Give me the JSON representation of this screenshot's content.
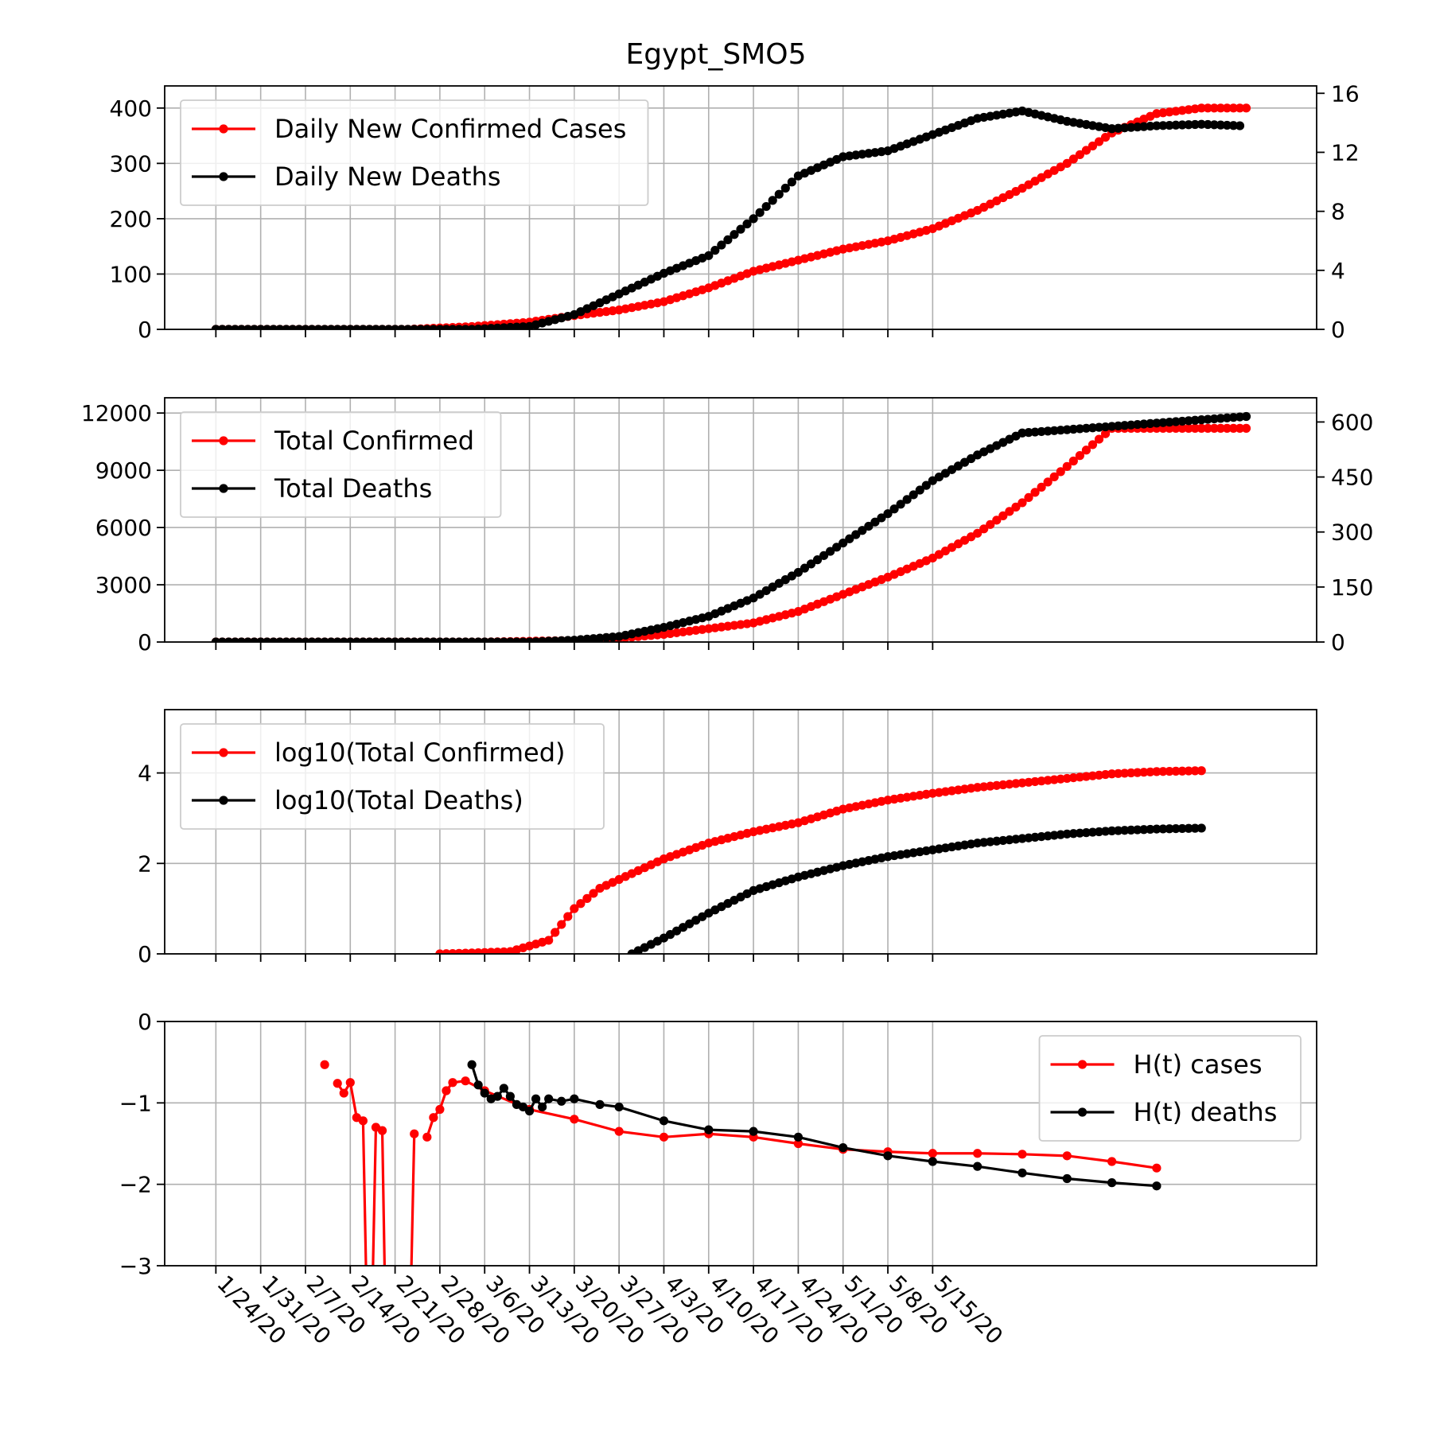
{
  "title": "Egypt_SMO5",
  "x_labels": [
    "1/24/20",
    "1/31/20",
    "2/7/20",
    "2/14/20",
    "2/21/20",
    "2/28/20",
    "3/6/20",
    "3/13/20",
    "3/20/20",
    "3/27/20",
    "4/3/20",
    "4/10/20",
    "4/17/20",
    "4/24/20",
    "5/1/20",
    "5/8/20",
    "5/15/20"
  ],
  "colors": {
    "confirmed": "#ff0000",
    "deaths": "#000000"
  },
  "chart_data": [
    {
      "type": "line",
      "title": "Egypt_SMO5",
      "x_unit": "days since 1/24/20",
      "ylim_left": [
        0,
        440
      ],
      "yticks_left": [
        0,
        100,
        200,
        300,
        400
      ],
      "ylim_right": [
        0,
        16.5
      ],
      "yticks_right": [
        0,
        4,
        8,
        12,
        16
      ],
      "legend": "top-left",
      "series": [
        {
          "name": "Daily New Confirmed Cases",
          "axis": "left",
          "color": "#ff0000",
          "points": [
            [
              0,
              0
            ],
            [
              30,
              0
            ],
            [
              40,
              5
            ],
            [
              49,
              13
            ],
            [
              56,
              25
            ],
            [
              63,
              35
            ],
            [
              70,
              50
            ],
            [
              77,
              75
            ],
            [
              84,
              105
            ],
            [
              91,
              125
            ],
            [
              98,
              145
            ],
            [
              105,
              160
            ],
            [
              112,
              182
            ],
            [
              119,
              215
            ],
            [
              126,
              255
            ],
            [
              133,
              300
            ],
            [
              140,
              355
            ],
            [
              147,
              390
            ],
            [
              154,
              400
            ],
            [
              161,
              400
            ]
          ]
        },
        {
          "name": "Daily New Deaths",
          "axis": "right",
          "color": "#000000",
          "points": [
            [
              0,
              0
            ],
            [
              40,
              0
            ],
            [
              49,
              0.2
            ],
            [
              56,
              1
            ],
            [
              63,
              2.4
            ],
            [
              70,
              3.8
            ],
            [
              77,
              5
            ],
            [
              84,
              7.5
            ],
            [
              91,
              10.4
            ],
            [
              98,
              11.7
            ],
            [
              105,
              12.1
            ],
            [
              112,
              13.2
            ],
            [
              119,
              14.3
            ],
            [
              126,
              14.8
            ],
            [
              133,
              14.1
            ],
            [
              140,
              13.6
            ],
            [
              147,
              13.8
            ],
            [
              154,
              13.9
            ],
            [
              160,
              13.8
            ]
          ]
        }
      ]
    },
    {
      "type": "line",
      "ylim_left": [
        0,
        12800
      ],
      "yticks_left": [
        0,
        3000,
        6000,
        9000,
        12000
      ],
      "ylim_right": [
        0,
        666
      ],
      "yticks_right": [
        0,
        150,
        300,
        450,
        600
      ],
      "legend": "top-left",
      "series": [
        {
          "name": "Total Confirmed",
          "axis": "left",
          "color": "#ff0000",
          "points": [
            [
              0,
              0
            ],
            [
              42,
              0
            ],
            [
              56,
              80
            ],
            [
              63,
              200
            ],
            [
              70,
              400
            ],
            [
              77,
              700
            ],
            [
              84,
              1000
            ],
            [
              91,
              1600
            ],
            [
              98,
              2500
            ],
            [
              105,
              3400
            ],
            [
              112,
              4400
            ],
            [
              119,
              5700
            ],
            [
              126,
              7300
            ],
            [
              133,
              9200
            ],
            [
              140,
              11200
            ],
            [
              161,
              11200
            ]
          ]
        },
        {
          "name": "Total Deaths",
          "axis": "right",
          "color": "#000000",
          "points": [
            [
              0,
              0
            ],
            [
              49,
              0
            ],
            [
              56,
              5
            ],
            [
              63,
              15
            ],
            [
              70,
              40
            ],
            [
              77,
              70
            ],
            [
              84,
              120
            ],
            [
              91,
              190
            ],
            [
              98,
              270
            ],
            [
              105,
              350
            ],
            [
              112,
              440
            ],
            [
              119,
              510
            ],
            [
              126,
              570
            ],
            [
              161,
              615
            ]
          ]
        }
      ]
    },
    {
      "type": "line",
      "ylim_left": [
        0,
        5.4
      ],
      "yticks_left": [
        0,
        2,
        4
      ],
      "legend": "top-left",
      "series": [
        {
          "name": "log10(Total Confirmed)",
          "axis": "left",
          "color": "#ff0000",
          "points": [
            [
              35,
              0
            ],
            [
              40,
              0.02
            ],
            [
              46,
              0.05
            ],
            [
              52,
              0.3
            ],
            [
              56,
              1.0
            ],
            [
              60,
              1.45
            ],
            [
              70,
              2.1
            ],
            [
              77,
              2.45
            ],
            [
              84,
              2.7
            ],
            [
              91,
              2.9
            ],
            [
              98,
              3.2
            ],
            [
              105,
              3.4
            ],
            [
              112,
              3.55
            ],
            [
              119,
              3.68
            ],
            [
              126,
              3.78
            ],
            [
              133,
              3.88
            ],
            [
              140,
              3.98
            ],
            [
              147,
              4.03
            ],
            [
              154,
              4.05
            ]
          ]
        },
        {
          "name": "log10(Total Deaths)",
          "axis": "left",
          "color": "#000000",
          "points": [
            [
              65,
              0
            ],
            [
              70,
              0.35
            ],
            [
              77,
              0.9
            ],
            [
              84,
              1.4
            ],
            [
              91,
              1.7
            ],
            [
              98,
              1.95
            ],
            [
              105,
              2.15
            ],
            [
              112,
              2.3
            ],
            [
              119,
              2.45
            ],
            [
              126,
              2.55
            ],
            [
              133,
              2.65
            ],
            [
              140,
              2.72
            ],
            [
              147,
              2.76
            ],
            [
              154,
              2.78
            ]
          ]
        }
      ]
    },
    {
      "type": "line",
      "ylim_left": [
        -3,
        0
      ],
      "yticks_left": [
        0,
        -1,
        -2,
        -3
      ],
      "legend": "top-right",
      "series": [
        {
          "name": "H(t) cases",
          "axis": "left",
          "color": "#ff0000",
          "segments": [
            [
              [
                17,
                -0.53
              ]
            ],
            [
              [
                19,
                -0.76
              ],
              [
                20,
                -0.88
              ],
              [
                21,
                -0.75
              ],
              [
                22,
                -1.18
              ],
              [
                23,
                -1.22
              ],
              [
                23.5,
                -3.2
              ]
            ],
            [
              [
                24.5,
                -3.2
              ],
              [
                25,
                -1.3
              ],
              [
                26,
                -1.34
              ],
              [
                26.4,
                -3.2
              ]
            ],
            [
              [
                30.5,
                -3.2
              ],
              [
                31,
                -1.38
              ]
            ],
            [
              [
                33,
                -1.42
              ],
              [
                34,
                -1.18
              ],
              [
                35,
                -1.08
              ],
              [
                36,
                -0.85
              ],
              [
                37,
                -0.75
              ],
              [
                39,
                -0.73
              ],
              [
                42,
                -0.85
              ],
              [
                49,
                -1.08
              ],
              [
                56,
                -1.2
              ],
              [
                63,
                -1.35
              ],
              [
                70,
                -1.42
              ],
              [
                77,
                -1.38
              ],
              [
                84,
                -1.42
              ],
              [
                91,
                -1.5
              ],
              [
                98,
                -1.57
              ],
              [
                105,
                -1.6
              ],
              [
                112,
                -1.62
              ],
              [
                119,
                -1.62
              ],
              [
                126,
                -1.63
              ],
              [
                133,
                -1.65
              ],
              [
                140,
                -1.72
              ],
              [
                147,
                -1.8
              ]
            ]
          ]
        },
        {
          "name": "H(t) deaths",
          "axis": "left",
          "color": "#000000",
          "segments": [
            [
              [
                40,
                -0.53
              ],
              [
                41,
                -0.78
              ],
              [
                42,
                -0.88
              ],
              [
                43,
                -0.95
              ],
              [
                44,
                -0.92
              ],
              [
                45,
                -0.82
              ],
              [
                46,
                -0.92
              ],
              [
                47,
                -1.02
              ],
              [
                48,
                -1.05
              ],
              [
                49,
                -1.1
              ],
              [
                50,
                -0.95
              ],
              [
                51,
                -1.05
              ],
              [
                52,
                -0.95
              ],
              [
                54,
                -0.98
              ],
              [
                56,
                -0.95
              ],
              [
                60,
                -1.02
              ],
              [
                63,
                -1.05
              ],
              [
                70,
                -1.22
              ],
              [
                77,
                -1.33
              ],
              [
                84,
                -1.35
              ],
              [
                91,
                -1.42
              ],
              [
                98,
                -1.55
              ],
              [
                105,
                -1.65
              ],
              [
                112,
                -1.72
              ],
              [
                119,
                -1.78
              ],
              [
                126,
                -1.86
              ],
              [
                133,
                -1.93
              ],
              [
                140,
                -1.98
              ],
              [
                147,
                -2.02
              ]
            ]
          ]
        }
      ]
    }
  ]
}
